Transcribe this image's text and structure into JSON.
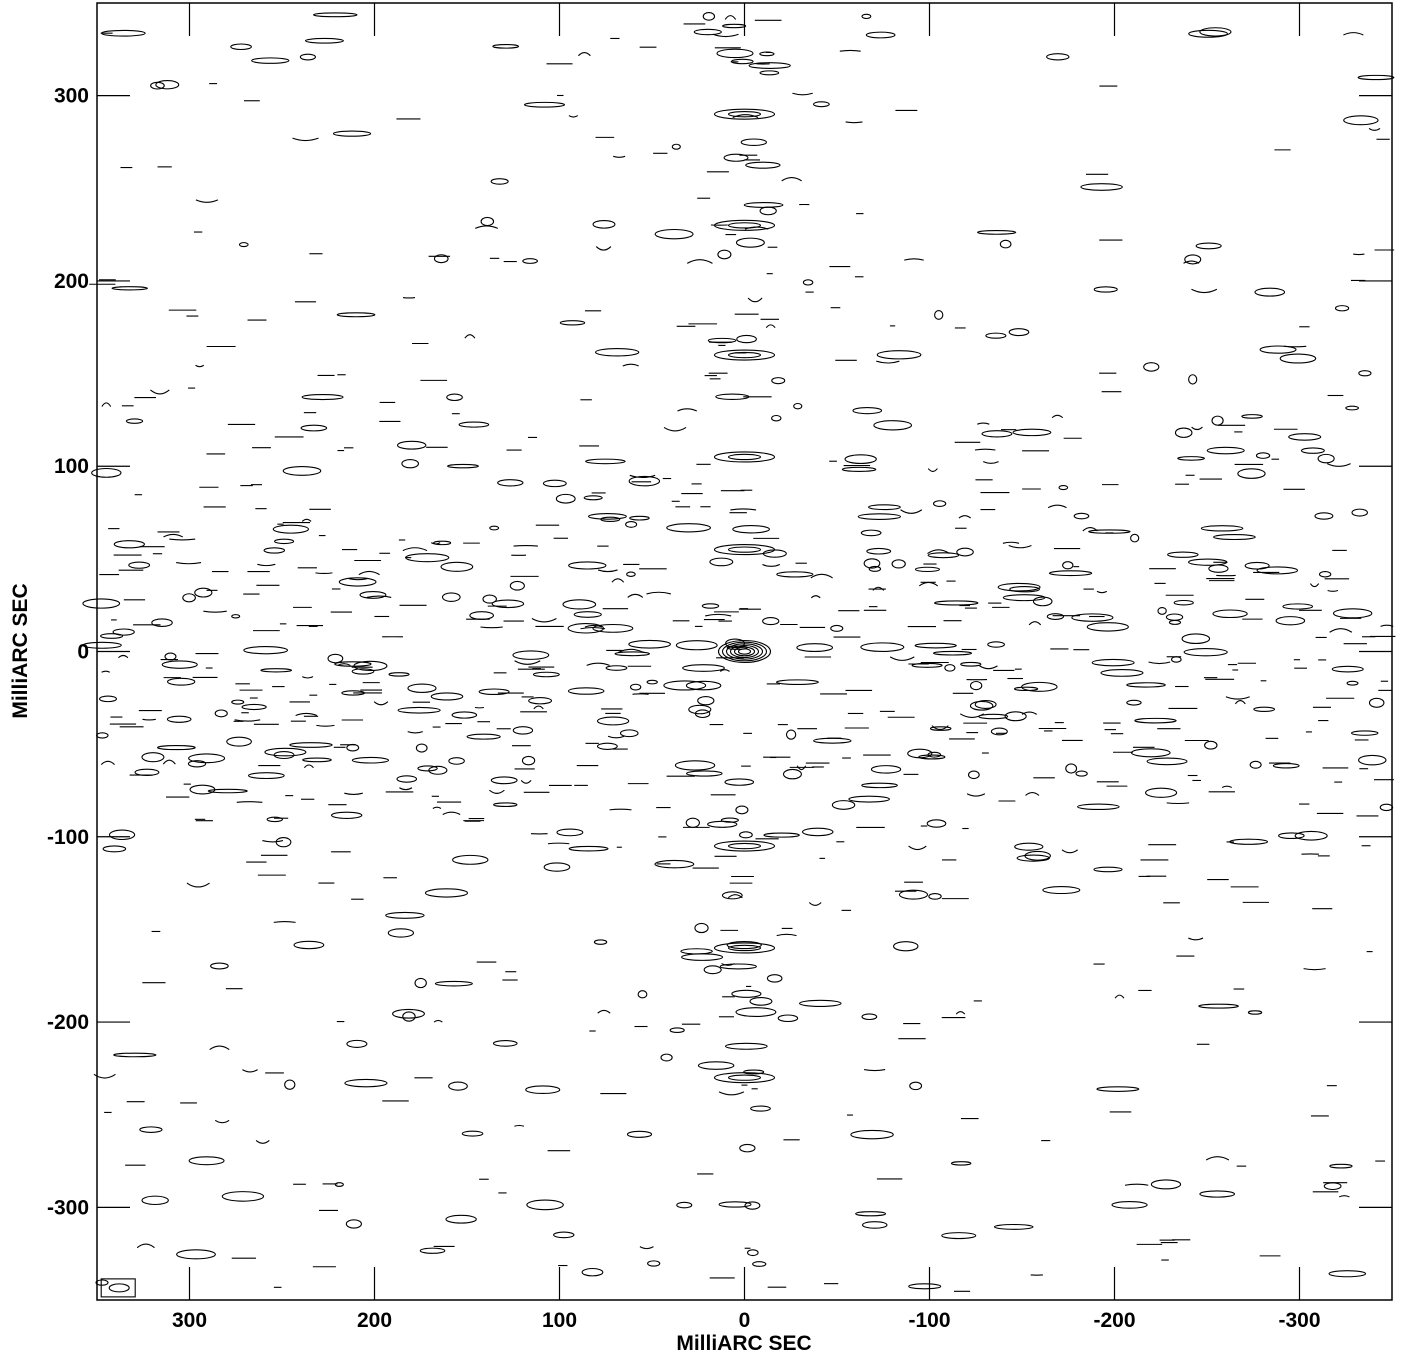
{
  "chart_data": {
    "type": "contour",
    "xlabel": "MilliARC SEC",
    "ylabel": "MilliARC SEC",
    "xlim": [
      350,
      -350
    ],
    "ylim": [
      -350,
      350
    ],
    "x_ticks": [
      300,
      200,
      100,
      0,
      -100,
      -200,
      -300
    ],
    "y_ticks": [
      300,
      200,
      100,
      0,
      -100,
      -200,
      -300
    ],
    "x_tick_labels": [
      "300",
      "200",
      "100",
      "0",
      "-100",
      "-200",
      "-300"
    ],
    "y_tick_labels": [
      "300",
      "200",
      "100",
      "0",
      "-100",
      "-200",
      "-300"
    ],
    "grid": false,
    "core": {
      "x": 0,
      "y": 0,
      "contour_levels": 6
    },
    "sidelobe_peaks": [
      {
        "x": 0,
        "y": 160
      },
      {
        "x": 0,
        "y": 105
      },
      {
        "x": 0,
        "y": 55
      },
      {
        "x": 0,
        "y": -105
      },
      {
        "x": 0,
        "y": -160
      },
      {
        "x": 0,
        "y": -230
      },
      {
        "x": 0,
        "y": 230
      },
      {
        "x": 0,
        "y": 290
      }
    ],
    "beam": {
      "x": 338,
      "y": -344
    }
  }
}
